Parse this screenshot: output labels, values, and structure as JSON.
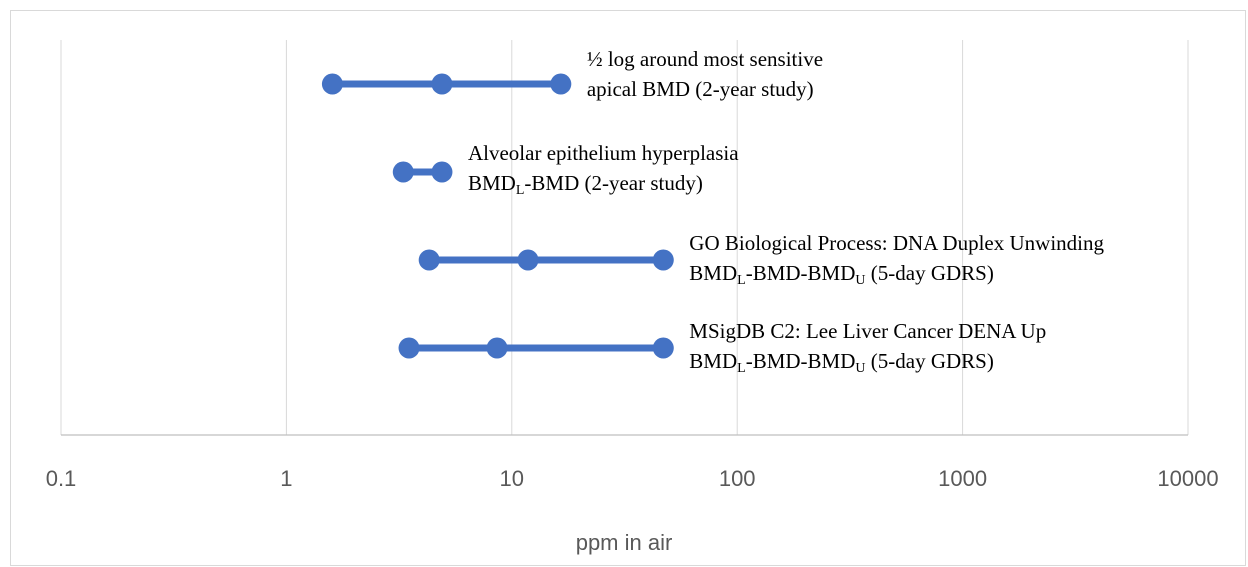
{
  "chart_data": {
    "type": "range-dot",
    "title": "",
    "xlabel": "ppm in air",
    "ylabel": "",
    "xscale": "log",
    "xlim": [
      0.1,
      10000
    ],
    "xticks": [
      "0.1",
      "1",
      "10",
      "100",
      "1000",
      "10000"
    ],
    "grid": "vertical",
    "color": "#4472c4",
    "series": [
      {
        "values": [
          1.6,
          4.9,
          16.5
        ],
        "label": [
          {
            "t": "½ log around most sensitive"
          },
          {
            "t": "apical BMD (2-year study)"
          }
        ]
      },
      {
        "values": [
          3.3,
          4.9
        ],
        "label": [
          {
            "t": "Alveolar epithelium hyperplasia"
          },
          {
            "t": "BMD",
            "sub": "L",
            "rest": "-BMD (2-year study)"
          }
        ]
      },
      {
        "values": [
          4.3,
          11.8,
          47.0
        ],
        "label": [
          {
            "t": "GO Biological Process: DNA Duplex Unwinding"
          },
          {
            "t": "BMD",
            "sub": "L",
            "mid": "-BMD-BMD",
            "sub2": "U",
            "rest": " (5-day GDRS)"
          }
        ]
      },
      {
        "values": [
          3.5,
          8.6,
          47.0
        ],
        "label": [
          {
            "t": "MSigDB C2: Lee Liver Cancer DENA Up"
          },
          {
            "t": "BMD",
            "sub": "L",
            "mid": "-BMD-BMD",
            "sub2": "U",
            "rest": " (5-day GDRS)"
          }
        ]
      }
    ]
  }
}
